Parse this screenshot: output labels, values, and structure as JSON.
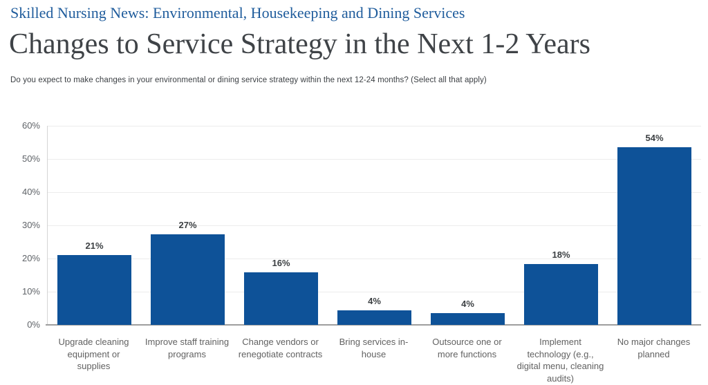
{
  "header": {
    "kicker": "Skilled Nursing News: Environmental, Housekeeping and Dining Services",
    "title": "Changes to Service Strategy in the Next 1-2 Years",
    "question": "Do you expect to make changes in your environmental or dining service strategy within the next 12-24 months? (Select all that apply)"
  },
  "colors": {
    "bar": "#0e5298",
    "kicker_blue": "#1f5c9c",
    "title_gray": "#3f4347",
    "gridline": "#ececec",
    "baseline": "#9e9e9e",
    "axis_label": "#5f6368",
    "category_label": "#616161",
    "value_label": "#3c4043"
  },
  "chart_data": {
    "type": "bar",
    "title": "Changes to Service Strategy in the Next 1-2 Years",
    "categories": [
      "Upgrade cleaning equipment or supplies",
      "Improve staff training programs",
      "Change vendors or renegotiate contracts",
      "Bring services in-house",
      "Outsource one or more functions",
      "Implement technology (e.g., digital menu, cleaning audits)",
      "No major changes planned"
    ],
    "category_display": [
      "Upgrade cleaning\nequipment or supplies",
      "Improve staff training\nprograms",
      "Change vendors or\nrenegotiate contracts",
      "Bring services in-\nhouse",
      "Outsource one or\nmore functions",
      "Implement\ntechnology (e.g.,\ndigital menu, cleaning\naudits)",
      "No major changes\nplanned"
    ],
    "values": [
      21,
      27,
      16,
      4,
      4,
      18,
      54
    ],
    "value_labels": [
      "21%",
      "27%",
      "16%",
      "4%",
      "4%",
      "18%",
      "54%"
    ],
    "drawn_heights": [
      21.0,
      27.2,
      15.8,
      4.4,
      3.5,
      18.3,
      53.5
    ],
    "xlabel": "",
    "ylabel": "",
    "ylim": [
      0,
      60
    ],
    "ytick_step": 10,
    "yticks": [
      "0%",
      "10%",
      "20%",
      "30%",
      "40%",
      "50%",
      "60%"
    ],
    "grid": true,
    "legend": "none"
  }
}
